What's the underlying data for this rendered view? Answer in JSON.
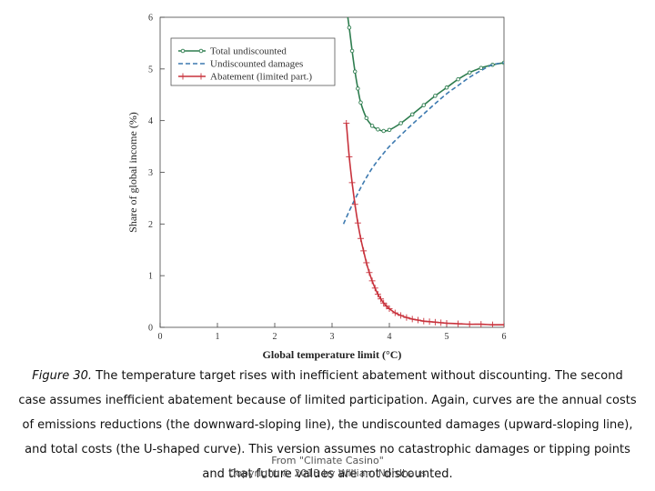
{
  "chart_data": {
    "type": "line",
    "xlabel": "Global temperature limit (°C)",
    "ylabel": "Share of global income (%)",
    "xlim": [
      0,
      6
    ],
    "ylim": [
      0,
      6
    ],
    "xticks": [
      "0",
      "1",
      "2",
      "3",
      "4",
      "5",
      "6"
    ],
    "yticks": [
      "0",
      "1",
      "2",
      "3",
      "4",
      "5",
      "6"
    ],
    "grid": false,
    "legend_position": "top-left",
    "series": [
      {
        "name": "Total undiscounted",
        "color": "#2e7d4f",
        "style": "solid-circle-markers",
        "x": [
          3.2,
          3.25,
          3.3,
          3.35,
          3.4,
          3.45,
          3.5,
          3.6,
          3.7,
          3.8,
          3.9,
          4.0,
          4.2,
          4.4,
          4.6,
          4.8,
          5.0,
          5.2,
          5.4,
          5.6,
          5.8,
          6.0
        ],
        "values": [
          6.6,
          6.2,
          5.8,
          5.35,
          4.95,
          4.62,
          4.35,
          4.05,
          3.9,
          3.83,
          3.8,
          3.82,
          3.95,
          4.12,
          4.3,
          4.48,
          4.64,
          4.8,
          4.93,
          5.02,
          5.08,
          5.12
        ]
      },
      {
        "name": "Undiscounted damages",
        "color": "#3d7ab0",
        "style": "dashed",
        "x": [
          3.2,
          3.3,
          3.4,
          3.5,
          3.6,
          3.7,
          3.8,
          3.9,
          4.0,
          4.2,
          4.4,
          4.6,
          4.8,
          5.0,
          5.2,
          5.4,
          5.6,
          5.8,
          6.0
        ],
        "values": [
          2.0,
          2.25,
          2.48,
          2.7,
          2.9,
          3.08,
          3.23,
          3.37,
          3.5,
          3.72,
          3.93,
          4.13,
          4.33,
          4.52,
          4.68,
          4.84,
          4.97,
          5.08,
          5.12
        ]
      },
      {
        "name": "Abatement (limited part.)",
        "color": "#c8323c",
        "style": "solid-plus-markers",
        "x": [
          3.25,
          3.3,
          3.35,
          3.4,
          3.45,
          3.5,
          3.55,
          3.6,
          3.65,
          3.7,
          3.75,
          3.8,
          3.85,
          3.9,
          3.95,
          4.0,
          4.1,
          4.2,
          4.3,
          4.4,
          4.5,
          4.6,
          4.7,
          4.8,
          4.9,
          5.0,
          5.2,
          5.4,
          5.6,
          5.8,
          6.0
        ],
        "values": [
          3.95,
          3.3,
          2.8,
          2.38,
          2.02,
          1.72,
          1.48,
          1.25,
          1.06,
          0.9,
          0.76,
          0.64,
          0.55,
          0.47,
          0.41,
          0.36,
          0.28,
          0.23,
          0.19,
          0.16,
          0.14,
          0.12,
          0.11,
          0.1,
          0.09,
          0.08,
          0.07,
          0.06,
          0.06,
          0.05,
          0.05
        ]
      }
    ]
  },
  "caption": {
    "figure_label": "Figure 30.",
    "text": " The temperature target rises with inefficient abatement without discounting. The second case assumes inefficient abatement because of limited participation. Again, curves are the annual costs of emissions reductions (the downward-sloping line), the undiscounted damages (upward-sloping line), and total costs (the U-shaped curve). This version assumes no catastrophic damages or tipping points and that future values are not discounted."
  },
  "credit": {
    "line1": "From \"Climate Casino\"",
    "line2": "Copyright © 2013 by William Nordhaus"
  }
}
